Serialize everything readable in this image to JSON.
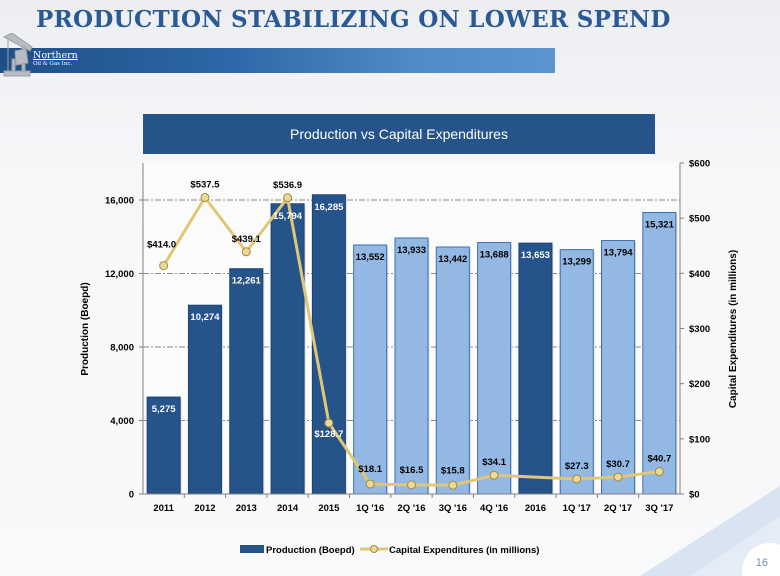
{
  "slide": {
    "title": "PRODUCTION STABILIZING ON LOWER SPEND",
    "logo_line1": "Northern",
    "logo_line2": "Oil & Gas Inc.",
    "page_number": "16"
  },
  "colors": {
    "title": "#2a5a96",
    "header_bg": "#26538a",
    "bar_annual": "#26538a",
    "bar_quarterly": "#93b8e3",
    "bar_quarterly_border": "#3a6fb0",
    "capex_line": "#e0c777",
    "capex_marker": "#ecd89b",
    "capex_marker_border": "#a08a3f"
  },
  "chart_data": {
    "type": "bar",
    "title": "Production vs Capital Expenditures",
    "categories": [
      "2011",
      "2012",
      "2013",
      "2014",
      "2015",
      "1Q '16",
      "2Q '16",
      "3Q '16",
      "4Q '16",
      "2016",
      "1Q '17",
      "2Q '17",
      "3Q '17"
    ],
    "bar_style": [
      "annual",
      "annual",
      "annual",
      "annual",
      "annual",
      "quarterly",
      "quarterly",
      "quarterly",
      "quarterly",
      "annual",
      "quarterly",
      "quarterly",
      "quarterly"
    ],
    "series": [
      {
        "name": "Production (Boepd)",
        "type": "bar",
        "axis": "left",
        "values": [
          5275,
          10274,
          12261,
          15794,
          16285,
          13552,
          13933,
          13442,
          13688,
          13653,
          13299,
          13794,
          15321
        ],
        "labels": [
          "5,275",
          "10,274",
          "12,261",
          "15,794",
          "16,285",
          "13,552",
          "13,933",
          "13,442",
          "13,688",
          "13,653",
          "13,299",
          "13,794",
          "15,321"
        ]
      },
      {
        "name": "Capital Expenditures (in millions)",
        "type": "line",
        "axis": "right",
        "values": [
          414.0,
          537.5,
          439.1,
          536.9,
          128.7,
          18.1,
          16.5,
          15.8,
          34.1,
          null,
          27.3,
          30.7,
          40.7
        ],
        "labels": [
          "$414.0",
          "$537.5",
          "$439.1",
          "$536.9",
          "$128.7",
          "$18.1",
          "$16.5",
          "$15.8",
          "$34.1",
          null,
          "$27.3",
          "$30.7",
          "$40.7"
        ]
      }
    ],
    "ylabel": "Production (Boepd)",
    "ylim": [
      0,
      18000
    ],
    "yticks": [
      0,
      4000,
      8000,
      12000,
      16000
    ],
    "ytick_labels": [
      "0",
      "4,000",
      "8,000",
      "12,000",
      "16,000"
    ],
    "y2label": "Capital Expenditures (in millions)",
    "y2lim": [
      0,
      600
    ],
    "y2ticks": [
      0,
      100,
      200,
      300,
      400,
      500,
      600
    ],
    "y2tick_labels": [
      "$0",
      "$100",
      "$200",
      "$300",
      "$400",
      "$500",
      "$600"
    ],
    "grid": true,
    "legend": "bottom-center",
    "legend_entries": [
      "Production (Boepd)",
      "Capital Expenditures (in millions)"
    ]
  }
}
